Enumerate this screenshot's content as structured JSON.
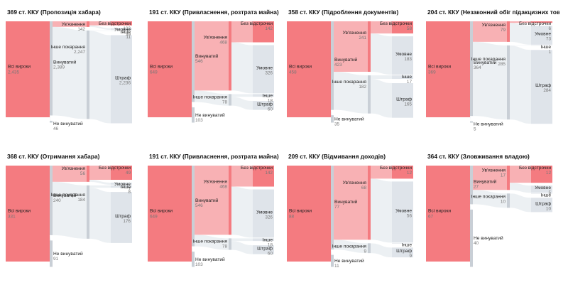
{
  "colors": {
    "red": "#f47b80",
    "red_flow": "#f7a3a7",
    "grey": "#dfe4ea",
    "grey_flow": "#e9edf1",
    "node_gray": "#c9cfd6"
  },
  "panels": [
    {
      "title": "369 ст. ККУ (Пропозиція хабара)",
      "nodes": {
        "all": {
          "label": "Всі вироки",
          "value": "2,435"
        },
        "guilty": {
          "label": "Винуватий",
          "value": "2,389"
        },
        "not_guilty": {
          "label": "Не винуватий",
          "value": "46"
        },
        "prison": {
          "label": "Ув'язнення",
          "value": "142"
        },
        "other": {
          "label": "Інше покарання",
          "value": "2,247"
        },
        "nodelay": {
          "label": "Без відстрочки",
          "value": "103"
        },
        "cond": {
          "label": "Умовне",
          "value": "39"
        },
        "misc": {
          "label": "Інше",
          "value": "11"
        },
        "fine": {
          "label": "Штраф",
          "value": "2,236"
        }
      }
    },
    {
      "title": "191 ст. ККУ (Привласнення, розтрата майна)",
      "nodes": {
        "all": {
          "label": "Всі вироки",
          "value": "649"
        },
        "guilty": {
          "label": "Винуватий",
          "value": "546"
        },
        "not_guilty": {
          "label": "Не винуватий",
          "value": "103"
        },
        "prison": {
          "label": "Ув'язнення",
          "value": "468"
        },
        "other": {
          "label": "Інше покарання",
          "value": "78"
        },
        "nodelay": {
          "label": "Без відстрочки",
          "value": "142"
        },
        "cond": {
          "label": "Умовне",
          "value": "326"
        },
        "misc": {
          "label": "Інше",
          "value": "18"
        },
        "fine": {
          "label": "Штраф",
          "value": "60"
        }
      }
    },
    {
      "title": "358 ст. ККУ (Підроблення документів)",
      "nodes": {
        "all": {
          "label": "Всі вироки",
          "value": "458"
        },
        "guilty": {
          "label": "Винуватий",
          "value": "423"
        },
        "not_guilty": {
          "label": "Не винуватий",
          "value": "35"
        },
        "prison": {
          "label": "Ув'язнення",
          "value": "241"
        },
        "other": {
          "label": "Інше покарання",
          "value": "182"
        },
        "nodelay": {
          "label": "Без відстрочки",
          "value": "58"
        },
        "cond": {
          "label": "Умовне",
          "value": "183"
        },
        "misc": {
          "label": "Інше",
          "value": "17"
        },
        "fine": {
          "label": "Штраф",
          "value": "165"
        }
      }
    },
    {
      "title": "204 ст. ККУ (Незаконний обіг підакцизних товарів)",
      "nodes": {
        "all": {
          "label": "Всі вироки",
          "value": "369"
        },
        "guilty": {
          "label": "Винуватий",
          "value": "364"
        },
        "not_guilty": {
          "label": "Не винуватий",
          "value": "5"
        },
        "prison": {
          "label": "Ув'язнення",
          "value": "79"
        },
        "other": {
          "label": "Інше покарання",
          "value": "285"
        },
        "nodelay": {
          "label": "Без відстрочки",
          "value": "6"
        },
        "cond": {
          "label": "Умовне",
          "value": "73"
        },
        "misc": {
          "label": "Інше",
          "value": "1"
        },
        "fine": {
          "label": "Штраф",
          "value": "284"
        }
      }
    },
    {
      "title": "368 ст. ККУ (Отримання хабара)",
      "nodes": {
        "all": {
          "label": "Всі вироки",
          "value": "331"
        },
        "guilty": {
          "label": "Винуватий",
          "value": "240"
        },
        "not_guilty": {
          "label": "Не винуватий",
          "value": "91"
        },
        "prison": {
          "label": "Ув'язнення",
          "value": "56"
        },
        "other": {
          "label": "Інше покарання",
          "value": "184"
        },
        "nodelay": {
          "label": "Без відстрочки",
          "value": "49"
        },
        "cond": {
          "label": "Умовне",
          "value": "7"
        },
        "misc": {
          "label": "Інше",
          "value": "8"
        },
        "fine": {
          "label": "Штраф",
          "value": "176"
        }
      }
    },
    {
      "title": "191 ст. ККУ (Привласнення, розтрата майна)",
      "nodes": {
        "all": {
          "label": "Всі вироки",
          "value": "649"
        },
        "guilty": {
          "label": "Винуватий",
          "value": "546"
        },
        "not_guilty": {
          "label": "Не винуватий",
          "value": "103"
        },
        "prison": {
          "label": "Ув'язнення",
          "value": "468"
        },
        "other": {
          "label": "Інше покарання",
          "value": "78"
        },
        "nodelay": {
          "label": "Без відстрочки",
          "value": "142"
        },
        "cond": {
          "label": "Умовне",
          "value": "326"
        },
        "misc": {
          "label": "Інше",
          "value": "18"
        },
        "fine": {
          "label": "Штраф",
          "value": "60"
        }
      }
    },
    {
      "title": "209 ст. ККУ (Відмивання доходів)",
      "nodes": {
        "all": {
          "label": "Всі вироки",
          "value": "88"
        },
        "guilty": {
          "label": "Винуватий",
          "value": "77"
        },
        "not_guilty": {
          "label": "Не винуватий",
          "value": "11"
        },
        "prison": {
          "label": "Ув'язнення",
          "value": "68"
        },
        "other": {
          "label": "Інше покарання",
          "value": "9"
        },
        "nodelay": {
          "label": "Без відстрочки",
          "value": "12"
        },
        "cond": {
          "label": "Умовне",
          "value": "56"
        },
        "misc": {
          "label": "Інше",
          "value": ""
        },
        "fine": {
          "label": "Штраф",
          "value": "9"
        }
      }
    },
    {
      "title": "364 ст. ККУ (Зловживання владою)",
      "nodes": {
        "all": {
          "label": "Всі вироки",
          "value": "67"
        },
        "guilty": {
          "label": "Винуватий",
          "value": "27"
        },
        "not_guilty": {
          "label": "Не винуватий",
          "value": "40"
        },
        "prison": {
          "label": "Ув'язнення",
          "value": "17"
        },
        "other": {
          "label": "Інше покарання",
          "value": "10"
        },
        "nodelay": {
          "label": "Без відстрочки",
          "value": "12"
        },
        "cond": {
          "label": "Умовне",
          "value": "5"
        },
        "misc": {
          "label": "Інше",
          "value": ""
        },
        "fine": {
          "label": "Штраф",
          "value": "10"
        }
      }
    }
  ]
}
